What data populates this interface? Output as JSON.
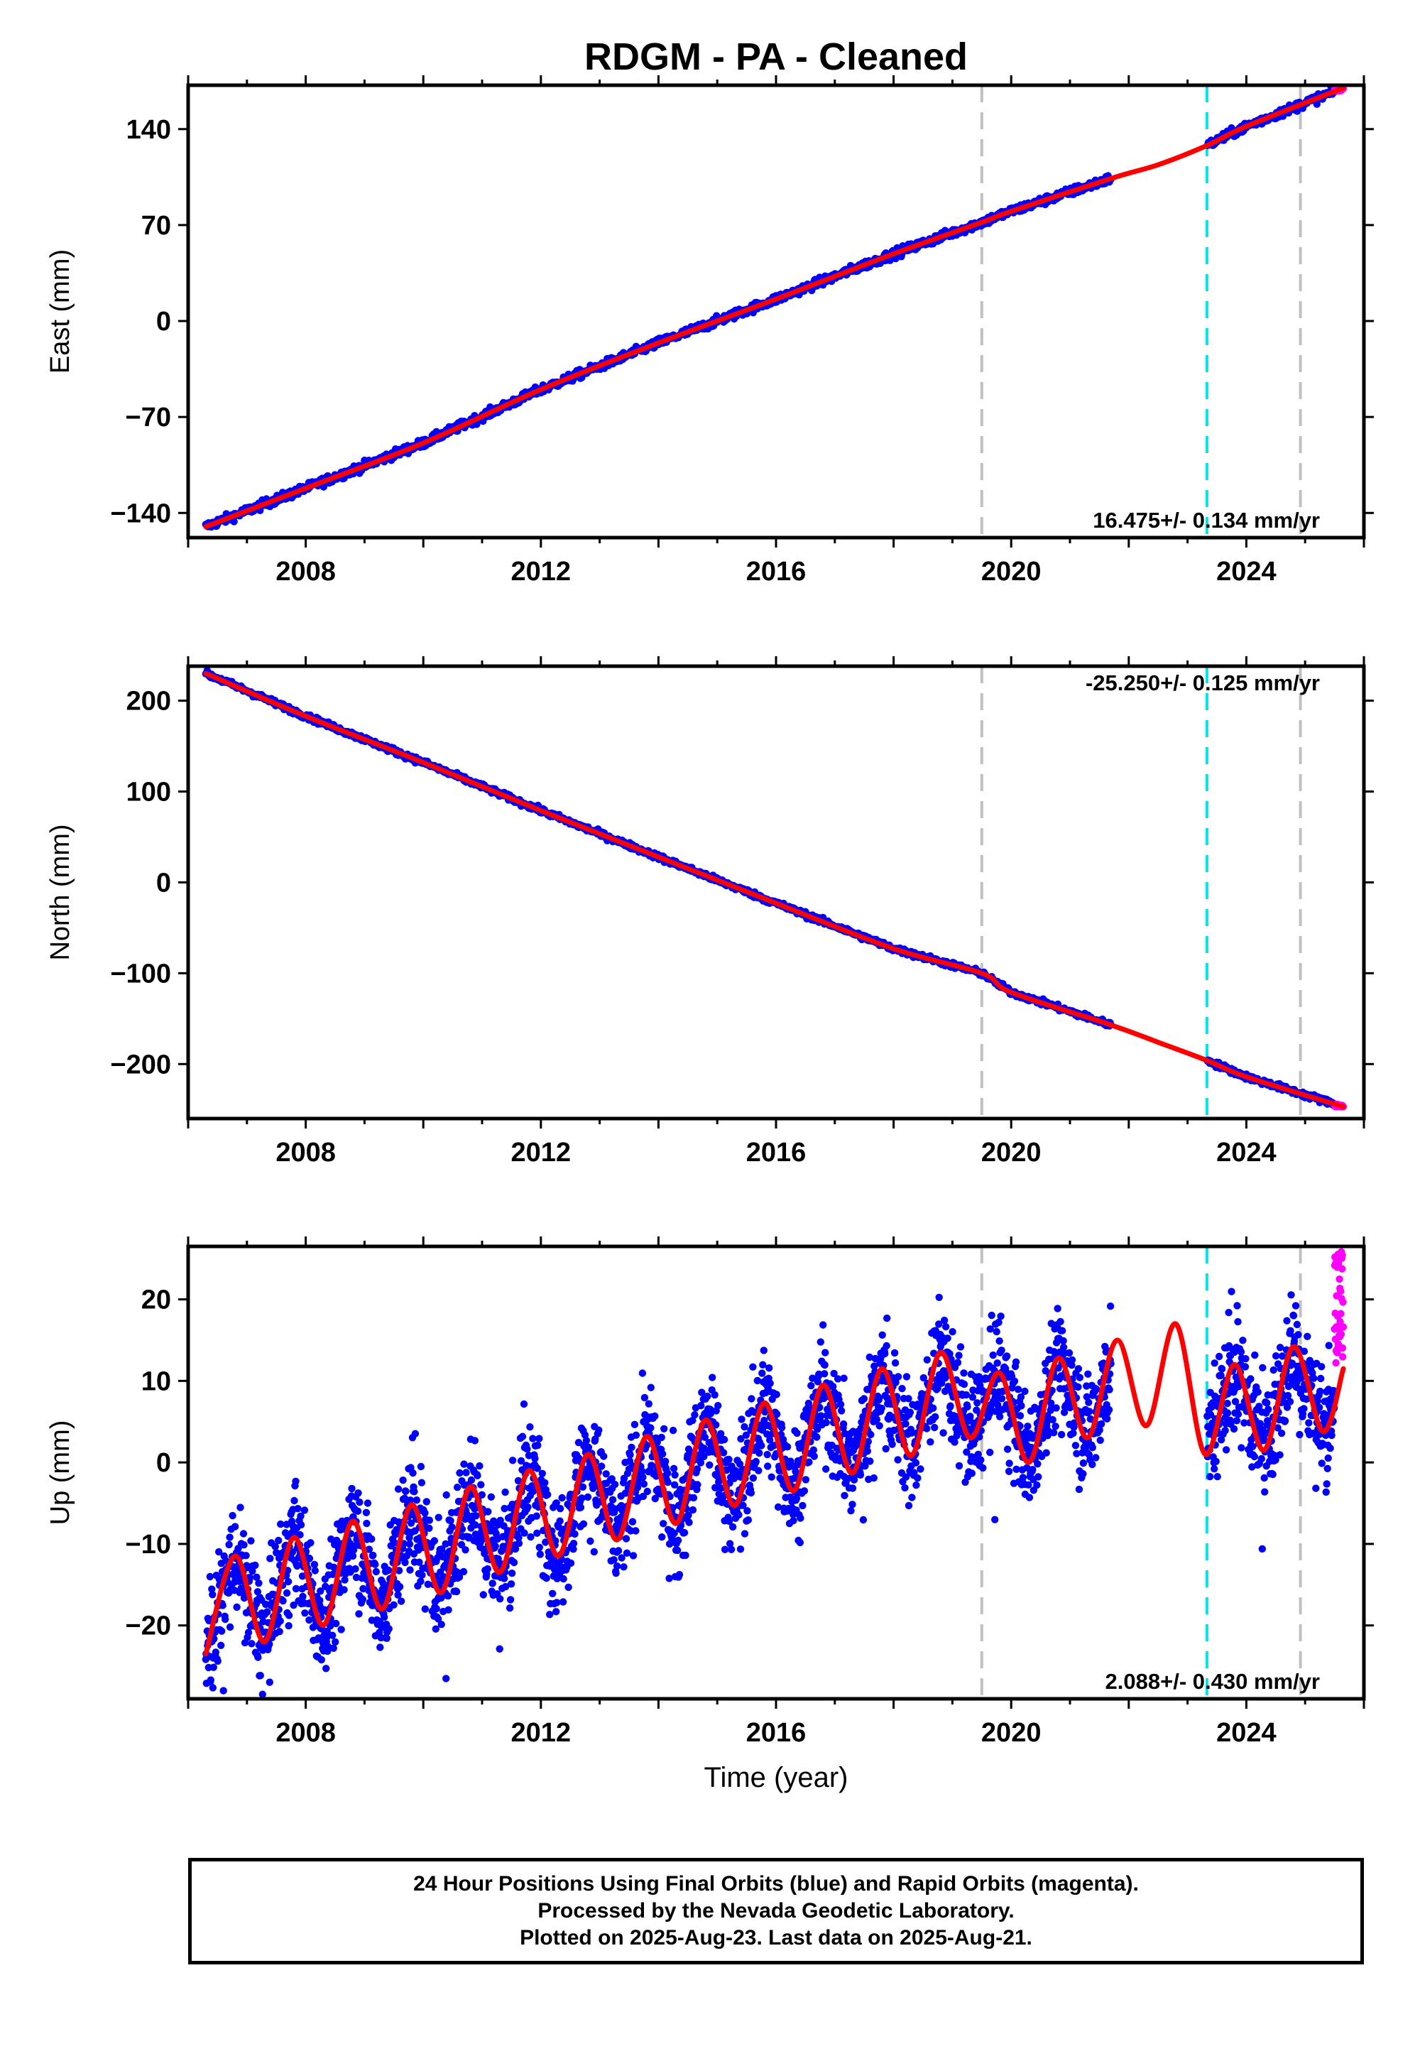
{
  "title": "RDGM  - PA - Cleaned",
  "x_axis": {
    "label": "Time (year)",
    "range": [
      2006.0,
      2026.0
    ],
    "ticks": [
      2008,
      2012,
      2016,
      2020,
      2024
    ]
  },
  "markers": {
    "gray_dashed_years": [
      2019.5,
      2024.92
    ],
    "cyan_dashed_years": [
      2023.33
    ]
  },
  "colors": {
    "final": "#0000ff",
    "rapid": "#ff00ff",
    "model": "#ff0000",
    "gray_marker": "#c0c0c0",
    "cyan_marker": "#00e5e5"
  },
  "chart_data": [
    {
      "type": "scatter",
      "name": "East",
      "ylabel": "East (mm)",
      "ylim": [
        -158,
        172
      ],
      "yticks": [
        140,
        70,
        0,
        -70,
        -140
      ],
      "rate": "16.475+/- 0.134 mm/yr",
      "rate_position": "bottom-right",
      "gap": [
        2021.7,
        2023.33
      ],
      "rapid_start": 2025.5,
      "series": [
        {
          "name": "Final Orbits",
          "color": "#0000ff",
          "x": [
            2006.3,
            2021.7
          ],
          "y": [
            -150,
            104
          ]
        },
        {
          "name": "Rapid Orbits",
          "color": "#ff00ff",
          "x": [
            2025.5,
            2025.65
          ],
          "y": [
            169,
            171
          ]
        },
        {
          "name": "Model",
          "color": "#ff0000",
          "x": [
            2006.3,
            2008,
            2010,
            2012,
            2014,
            2016,
            2018,
            2019.5,
            2020,
            2021.7,
            2022.5,
            2023.33,
            2024,
            2025.65
          ],
          "y": [
            -150,
            -122,
            -89,
            -50,
            -16,
            16,
            49,
            72,
            80,
            104,
            114,
            128,
            142,
            170
          ]
        }
      ]
    },
    {
      "type": "scatter",
      "name": "North",
      "ylabel": "North (mm)",
      "ylim": [
        -260,
        238
      ],
      "yticks": [
        200,
        100,
        0,
        -100,
        -200
      ],
      "rate": "-25.250+/- 0.125 mm/yr",
      "rate_position": "top-right",
      "gap": [
        2021.7,
        2023.33
      ],
      "rapid_start": 2025.5,
      "series": [
        {
          "name": "Final Orbits",
          "color": "#0000ff",
          "x": [
            2006.3,
            2021.7
          ],
          "y": [
            230,
            -158
          ]
        },
        {
          "name": "Rapid Orbits",
          "color": "#ff00ff",
          "x": [
            2025.5,
            2025.65
          ],
          "y": [
            -245,
            -247
          ]
        },
        {
          "name": "Model",
          "color": "#ff0000",
          "x": [
            2006.3,
            2008,
            2010,
            2012,
            2014,
            2016,
            2018,
            2019.5,
            2020,
            2021.7,
            2022.5,
            2023.33,
            2024,
            2025.65
          ],
          "y": [
            230,
            183,
            132,
            79,
            28,
            -23,
            -73,
            -100,
            -121,
            -157,
            -176,
            -196,
            -214,
            -247
          ]
        }
      ]
    },
    {
      "type": "scatter",
      "name": "Up",
      "ylabel": "Up (mm)",
      "ylim": [
        -29,
        26.5
      ],
      "yticks": [
        20,
        10,
        0,
        -10,
        -20
      ],
      "rate": "2.088+/- 0.430 mm/yr",
      "rate_position": "bottom-right",
      "gap": [
        2021.7,
        2023.33
      ],
      "rapid_start": 2025.5,
      "series": [
        {
          "name": "Final Orbits",
          "color": "#0000ff",
          "x": [
            2006.3,
            2021.7
          ],
          "y": [
            -18,
            8
          ]
        },
        {
          "name": "Rapid Orbits",
          "color": "#ff00ff",
          "x": [
            2025.5,
            2025.65
          ],
          "y": [
            12,
            26
          ]
        },
        {
          "name": "Model",
          "color": "#ff0000",
          "x": [
            2006.3,
            2006.8,
            2007.3,
            2007.8,
            2008.3,
            2008.8,
            2009.3,
            2009.8,
            2010.3,
            2010.8,
            2011.3,
            2011.8,
            2012.3,
            2012.8,
            2013.3,
            2013.8,
            2014.3,
            2014.8,
            2015.3,
            2015.8,
            2016.3,
            2016.8,
            2017.3,
            2017.8,
            2018.3,
            2018.8,
            2019.3,
            2019.8,
            2020.3,
            2020.8,
            2021.3,
            2021.8,
            2022.3,
            2022.8,
            2023.3,
            2023.8,
            2024.3,
            2024.8,
            2025.3,
            2025.65
          ],
          "y": [
            -23.5,
            -11.5,
            -22,
            -9.2,
            -20,
            -7.2,
            -18,
            -5.2,
            -16,
            -3,
            -13.5,
            -1,
            -11.5,
            1,
            -9.5,
            3.2,
            -7.5,
            5.2,
            -5.3,
            7.3,
            -3.5,
            9.5,
            -1.3,
            11.5,
            0.8,
            13.5,
            3,
            11,
            0,
            12.8,
            3,
            15,
            4.5,
            17,
            1,
            12,
            1.5,
            14.2,
            3.8,
            11.5
          ]
        }
      ]
    }
  ],
  "footer": {
    "line1": "24 Hour Positions Using Final Orbits (blue) and Rapid Orbits (magenta).",
    "line2": "Processed by the Nevada Geodetic Laboratory.",
    "line3": "Plotted on 2025-Aug-23. Last data on 2025-Aug-21."
  }
}
